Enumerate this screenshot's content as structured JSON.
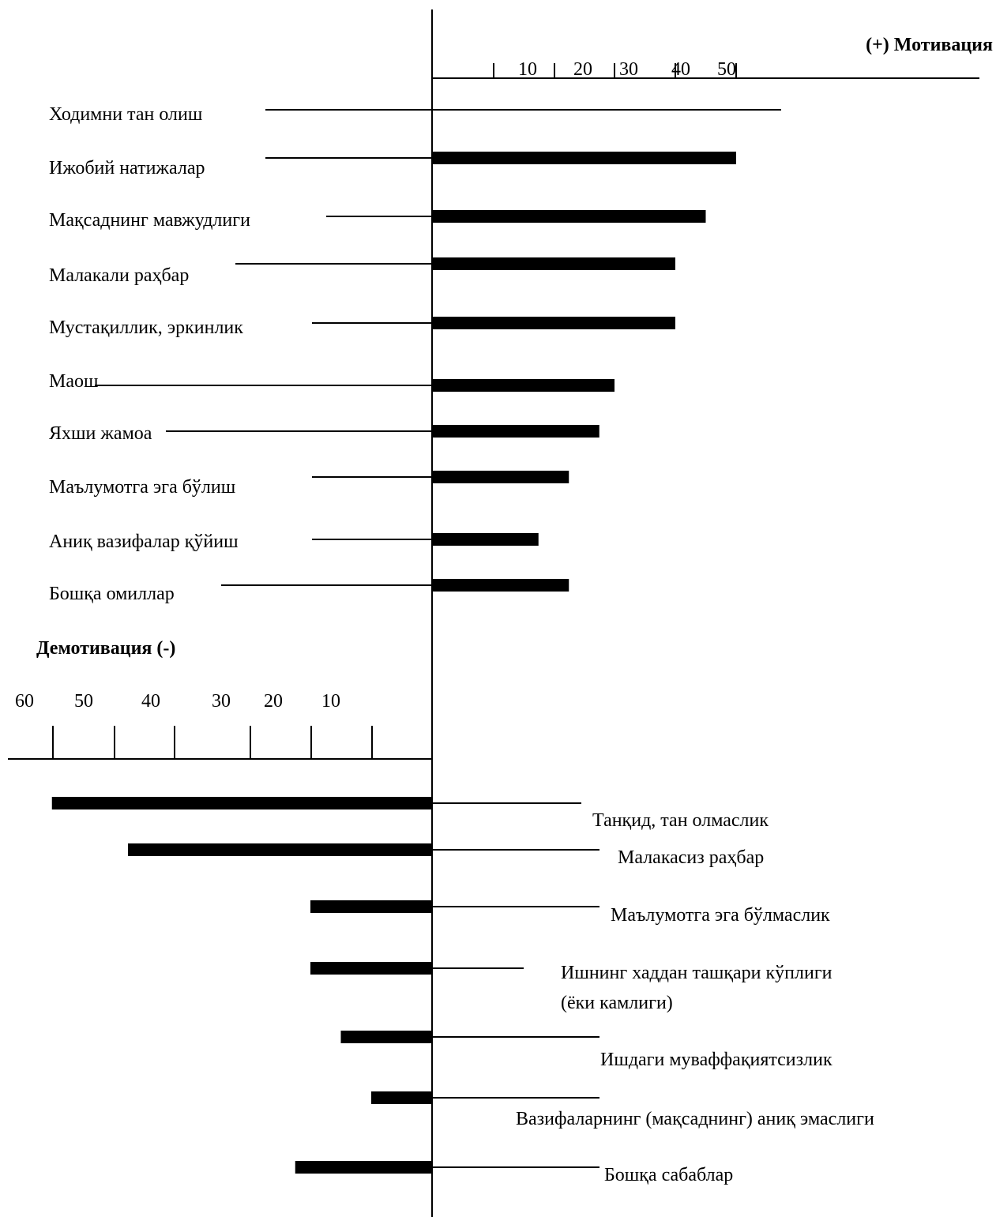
{
  "chart_data": {
    "type": "bar",
    "positive": {
      "title": "(+) Мотивация",
      "tick_labels": [
        "10",
        "20",
        "30",
        "40",
        "50"
      ],
      "xlim": [
        0,
        50
      ],
      "categories": [
        "Ходимни тан олиш",
        "Ижобий натижалар",
        "Мақсаднинг мавжудлиги",
        "Малакали раҳбар",
        "Мустақиллик, эркинлик",
        "Маош",
        "Яхши жамоа",
        "Маълумотга эга бўлиш",
        "Аниқ вазифалар қўйиш",
        "Бошқа омиллар"
      ],
      "values": [
        0,
        50,
        45,
        40,
        40,
        30,
        27.5,
        22.5,
        17.5,
        22.5
      ]
    },
    "negative": {
      "title": "Демотивация (-)",
      "tick_labels": [
        "60",
        "50",
        "40",
        "30",
        "20",
        "10"
      ],
      "xlim": [
        0,
        60
      ],
      "categories": [
        "Танқид, тан олмаслик",
        "Малакасиз раҳбар",
        "Маълумотга эга бўлмаслик",
        "Ишнинг хаддан ташқари кўплиги (ёки камлиги)",
        "Ишдаги муваффақиятсизлик",
        "Вазифаларнинг (мақсаднинг) аниқ эмаслиги",
        "Бошқа сабаблар"
      ],
      "values": [
        62.5,
        50,
        20,
        20,
        15,
        10,
        22.5
      ]
    }
  }
}
